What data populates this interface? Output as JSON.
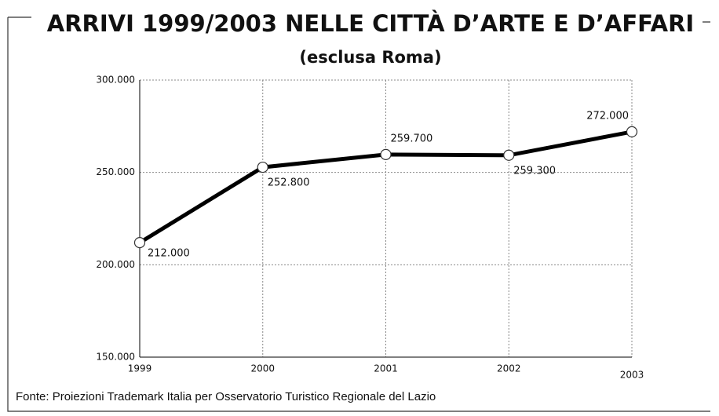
{
  "chart_data": {
    "type": "line",
    "title": "ARRIVI 1999/2003 NELLE CITTÀ D’ARTE E D’AFFARI",
    "subtitle": "(esclusa Roma)",
    "note": "Fonte: Proiezioni Trademark Italia per Osservatorio Turistico Regionale del Lazio",
    "categories": [
      "1999",
      "2000",
      "2001",
      "2002",
      "2003"
    ],
    "series": [
      {
        "name": "Arrivi",
        "color": "#000000",
        "values": [
          212000,
          252800,
          259700,
          259300,
          272000
        ],
        "value_labels": [
          "212.000",
          "252.800",
          "259.700",
          "259.300",
          "272.000"
        ]
      }
    ],
    "ylim": [
      150000,
      300000
    ],
    "yticks": [
      {
        "value": 150000,
        "label": "150.000"
      },
      {
        "value": 200000,
        "label": "200.000"
      },
      {
        "value": 250000,
        "label": "250.000"
      },
      {
        "value": 300000,
        "label": "300.000"
      }
    ],
    "grid": true
  }
}
